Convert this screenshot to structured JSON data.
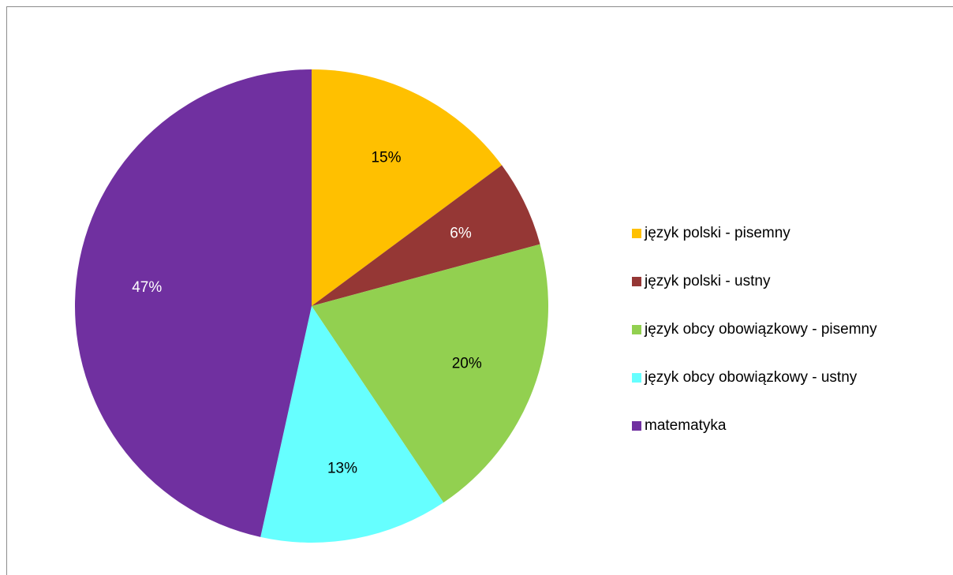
{
  "chart_data": {
    "type": "pie",
    "categories": [
      "język polski - pisemny",
      "język polski - ustny",
      "język obcy obowiązkowy - pisemny",
      "język obcy obowiązkowy - ustny",
      "matematyka"
    ],
    "values": [
      15,
      6,
      20,
      13,
      47
    ],
    "value_labels": [
      "15%",
      "6%",
      "20%",
      "13%",
      "47%"
    ],
    "colors": [
      "#FFC000",
      "#953735",
      "#92D050",
      "#66FFFF",
      "#7030A0"
    ],
    "legend": "right"
  }
}
